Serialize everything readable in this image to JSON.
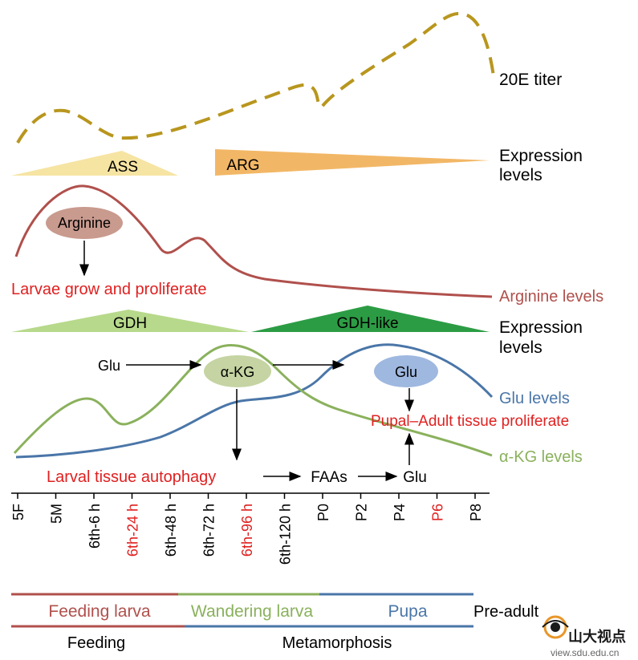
{
  "colors": {
    "titer": "#b8961e",
    "ass": "#f6e4a3",
    "arg": "#f2b766",
    "arginine_curve": "#b0504c",
    "arginine_ellipse": "#c99a8e",
    "gdh": "#b7d98b",
    "gdh_like": "#2c9c44",
    "glu_curve": "#4a76a8",
    "glu_ellipse": "#9fb8e0",
    "akg_curve": "#8ab15c",
    "akg_ellipse": "#c5d4a2",
    "red_text": "#e02020",
    "feeding_bar": "#b0504c",
    "wandering_bar": "#8ab15c",
    "pupa_bar": "#4a76a8"
  },
  "labels": {
    "titer": "20E titer",
    "expression1_line1": "Expression",
    "expression1_line2": "levels",
    "ass": "ASS",
    "arg": "ARG",
    "arginine": "Arginine",
    "arginine_effect": "Larvae grow and proliferate",
    "arginine_levels": "Arginine levels",
    "gdh": "GDH",
    "gdh_like": "GDH-like",
    "expression2_line1": "Expression",
    "expression2_line2": "levels",
    "glu_left": "Glu",
    "akg": "α-KG",
    "glu_right": "Glu",
    "pupal_effect": "Pupal–Adult tissue proliferate",
    "glu_levels": "Glu levels",
    "akg_levels": "α-KG levels",
    "autophagy": "Larval tissue autophagy",
    "faas": "FAAs",
    "glu_bottom": "Glu"
  },
  "timepoints": [
    {
      "label": "5F",
      "red": false
    },
    {
      "label": "5M",
      "red": false
    },
    {
      "label": "6th-6 h",
      "red": false
    },
    {
      "label": "6th-24 h",
      "red": true
    },
    {
      "label": "6th-48 h",
      "red": false
    },
    {
      "label": "6th-72 h",
      "red": false
    },
    {
      "label": "6th-96 h",
      "red": true
    },
    {
      "label": "6th-120 h",
      "red": false
    },
    {
      "label": "P0",
      "red": false
    },
    {
      "label": "P2",
      "red": false
    },
    {
      "label": "P4",
      "red": false
    },
    {
      "label": "P6",
      "red": true
    },
    {
      "label": "P8",
      "red": false
    }
  ],
  "stages": {
    "feeding_larva": "Feeding larva",
    "wandering_larva": "Wandering larva",
    "pupa": "Pupa",
    "pre_adult": "Pre-adult",
    "feeding": "Feeding",
    "metamorphosis": "Metamorphosis"
  },
  "watermark": {
    "chinese": "山大视点",
    "url": "view.sdu.edu.cn"
  }
}
